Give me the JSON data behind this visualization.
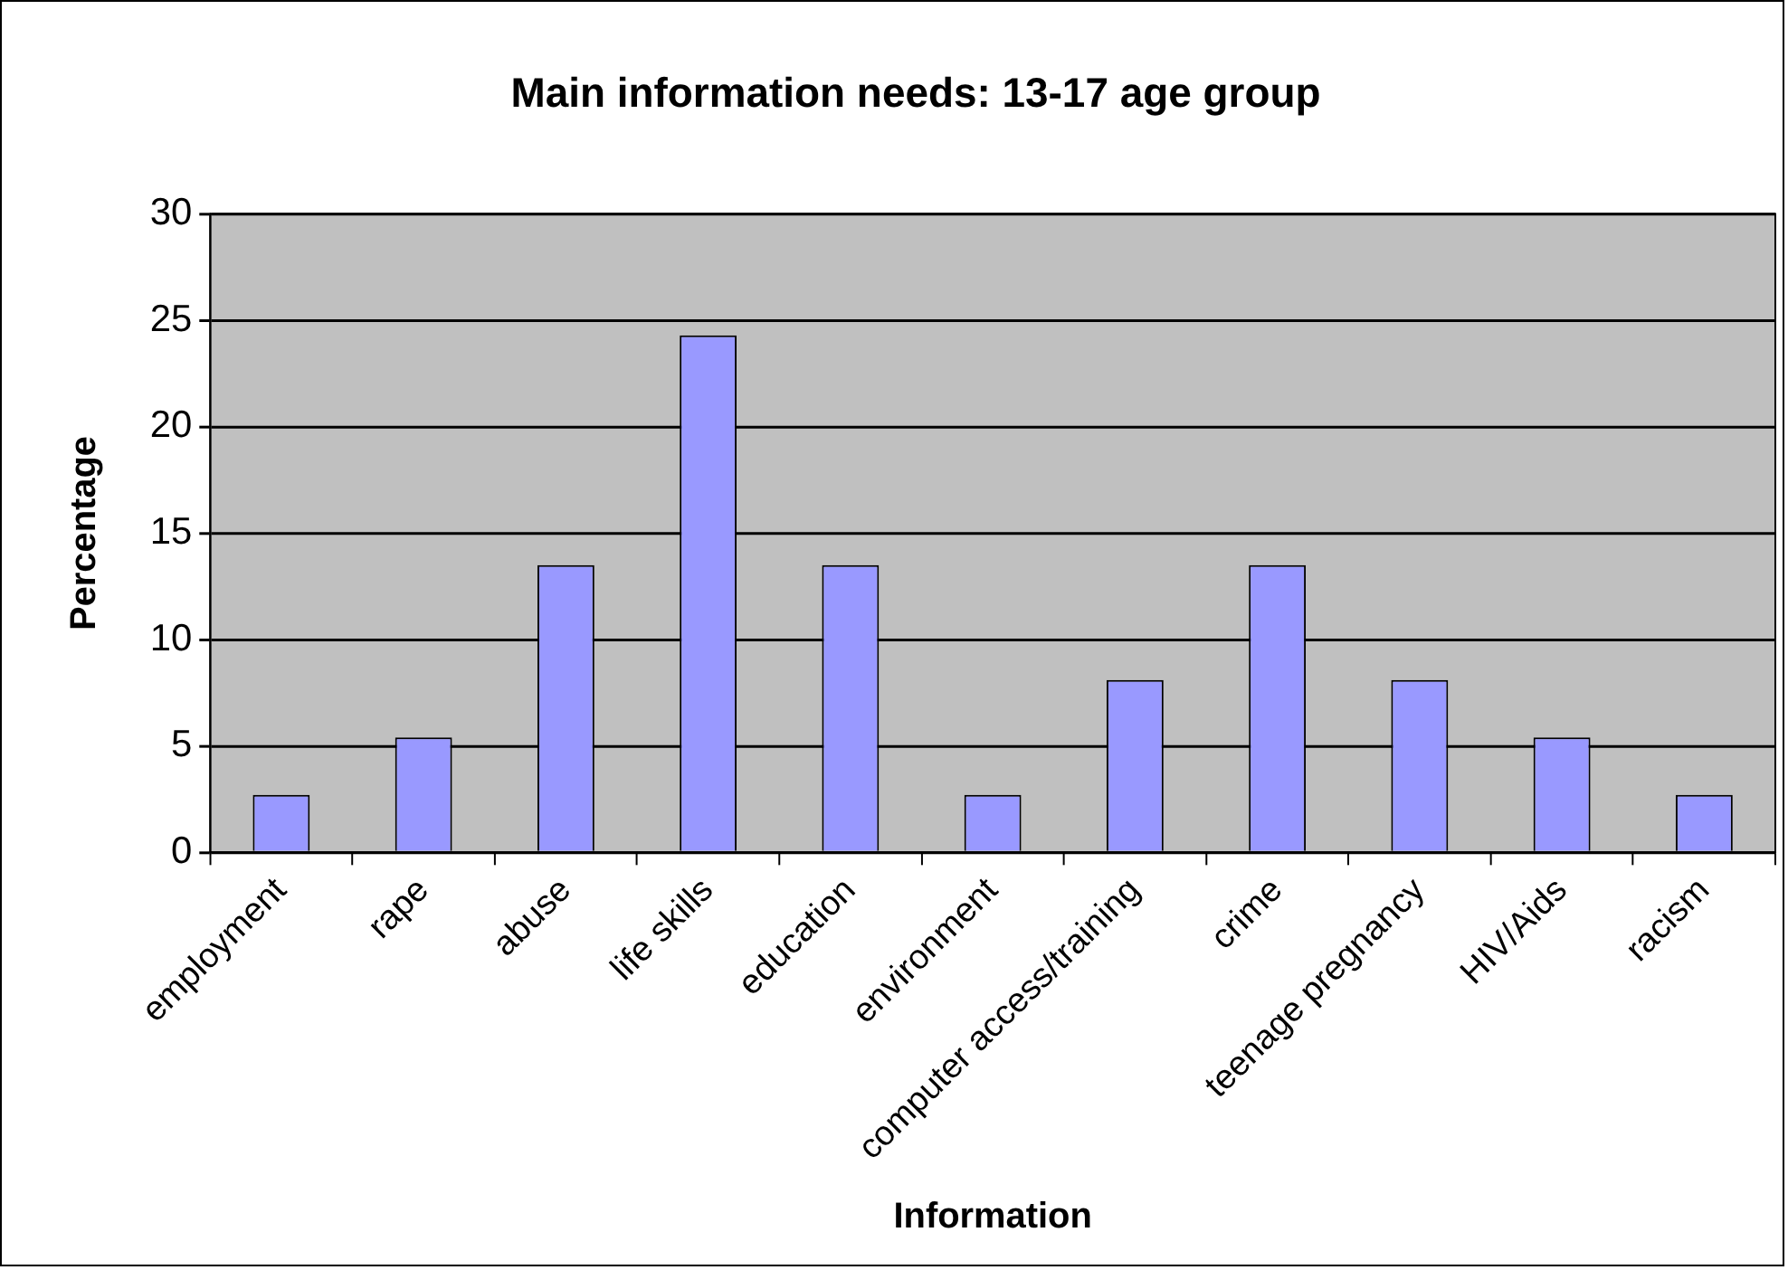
{
  "chart_data": {
    "type": "bar",
    "title": "Main information needs: 13-17 age group",
    "xlabel": "Information",
    "ylabel": "Percentage",
    "categories": [
      "employment",
      "rape",
      "abuse",
      "life skills",
      "education",
      "environment",
      "computer access/training",
      "crime",
      "teenage pregnancy",
      "HIV/Aids",
      "racism"
    ],
    "values": [
      2.7,
      5.4,
      13.5,
      24.3,
      13.5,
      2.7,
      8.1,
      13.5,
      8.1,
      5.4,
      2.7
    ],
    "color": "#9999ff",
    "ylim": [
      0,
      30
    ],
    "yticks": [
      0,
      5,
      10,
      15,
      20,
      25,
      30
    ],
    "grid": "y",
    "legend": false
  }
}
